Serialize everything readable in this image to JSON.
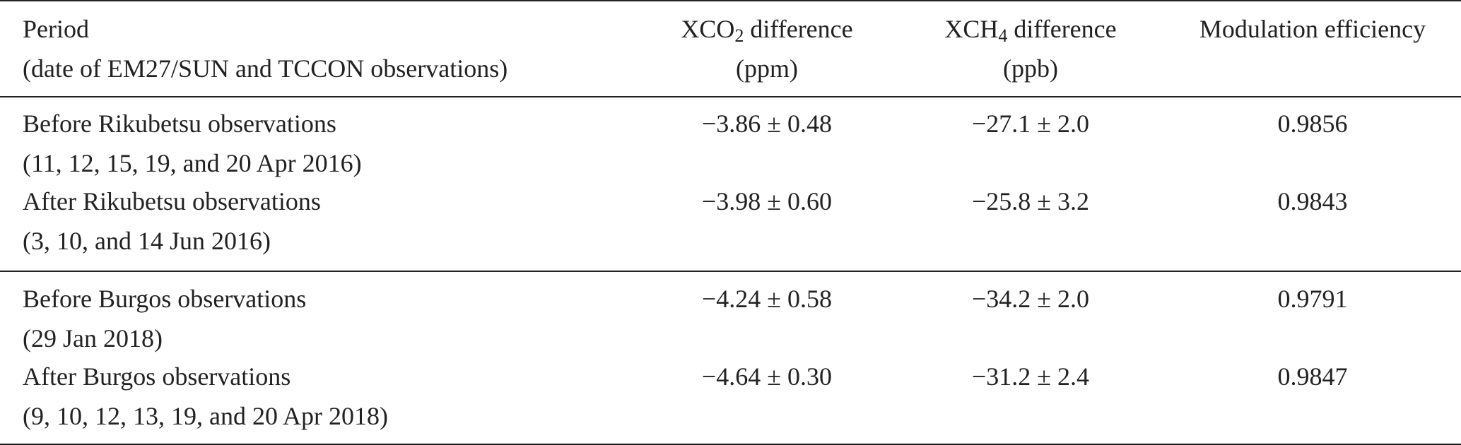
{
  "header": {
    "period": [
      "Period",
      "(date of EM27/SUN and TCCON observations)"
    ],
    "xco2": {
      "main": "XCO",
      "sub": "2",
      "rest": " difference",
      "unit": "(ppm)"
    },
    "xch4": {
      "main": "XCH",
      "sub": "4",
      "rest": " difference",
      "unit": "(ppb)"
    },
    "modulation": "Modulation efficiency"
  },
  "groups": [
    [
      {
        "period": "Before Rikubetsu observations",
        "dates": "(11, 12, 15, 19, and 20 Apr 2016)",
        "xco2": "−3.86 ± 0.48",
        "xch4": "−27.1 ± 2.0",
        "efficiency": "0.9856"
      },
      {
        "period": "After Rikubetsu observations",
        "dates": "(3, 10, and 14 Jun 2016)",
        "xco2": "−3.98 ± 0.60",
        "xch4": "−25.8 ± 3.2",
        "efficiency": "0.9843"
      }
    ],
    [
      {
        "period": "Before Burgos observations",
        "dates": "(29 Jan 2018)",
        "xco2": "−4.24 ± 0.58",
        "xch4": "−34.2 ± 2.0",
        "efficiency": "0.9791"
      },
      {
        "period": "After Burgos observations",
        "dates": "(9, 10, 12, 13, 19, and 20 Apr 2018)",
        "xco2": "−4.64 ± 0.30",
        "xch4": "−31.2 ± 2.4",
        "efficiency": "0.9847"
      }
    ]
  ]
}
